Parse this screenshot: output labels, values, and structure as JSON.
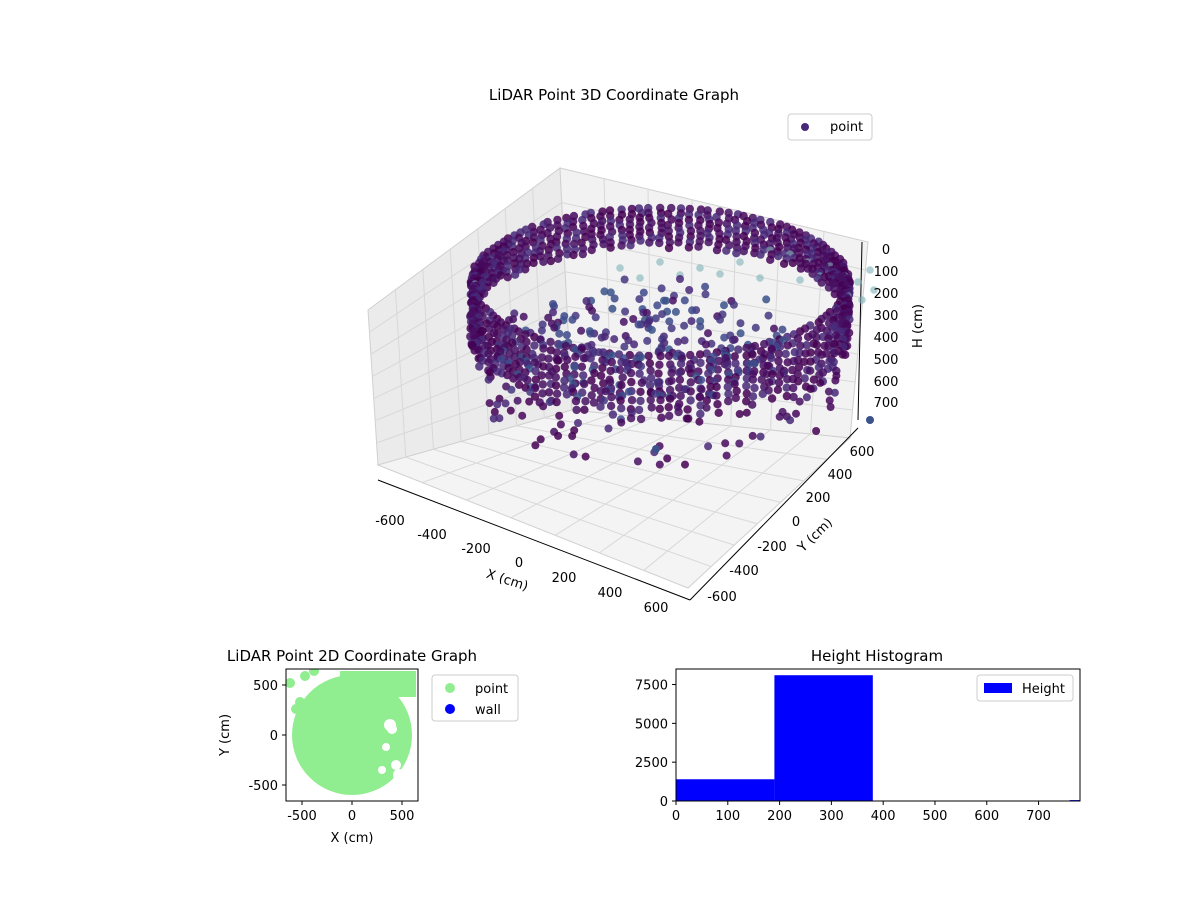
{
  "figure": {
    "background": "#ffffff"
  },
  "chart_data": [
    {
      "type": "scatter3d",
      "title": "LiDAR Point 3D Coordinate Graph",
      "xlabel": "X (cm)",
      "ylabel": "Y (cm)",
      "zlabel": "H (cm)",
      "xlim": [
        -650,
        650
      ],
      "ylim": [
        -650,
        650
      ],
      "zlim": [
        0,
        780
      ],
      "z_inverted": true,
      "x_ticks": [
        "-600",
        "-400",
        "-200",
        "0",
        "200",
        "400",
        "600"
      ],
      "y_ticks": [
        "-600",
        "-400",
        "-200",
        "0",
        "200",
        "400",
        "600"
      ],
      "z_ticks": [
        "0",
        "100",
        "200",
        "300",
        "400",
        "500",
        "600",
        "700"
      ],
      "legend": {
        "position": "top-right",
        "entries": [
          "point"
        ]
      },
      "colormap": "viridis",
      "colors": {
        "dark": "#440154",
        "mid": "#3b528b",
        "light": "#21918c",
        "marker": "#482878"
      },
      "description_series": [
        {
          "name": "point",
          "shape": "ring wall",
          "radius": [
            560,
            600
          ],
          "height": [
            200,
            380
          ]
        },
        {
          "name": "point",
          "shape": "scattered interior",
          "radius": [
            0,
            520
          ],
          "height": [
            0,
            200
          ]
        }
      ]
    },
    {
      "type": "scatter",
      "title": "LiDAR Point 2D Coordinate Graph",
      "xlabel": "X (cm)",
      "ylabel": "Y (cm)",
      "xlim": [
        -660,
        660
      ],
      "ylim": [
        -660,
        660
      ],
      "x_ticks": [
        "-500",
        "0",
        "500"
      ],
      "y_ticks": [
        "-500",
        "0",
        "500"
      ],
      "legend": {
        "position": "outside-right",
        "entries": [
          "point",
          "wall"
        ]
      },
      "colors": {
        "point": "#90ee90",
        "wall": "#0000ff"
      },
      "series": [
        {
          "name": "point",
          "shape": "disk",
          "center": [
            0,
            0
          ],
          "radius": 600
        },
        {
          "name": "wall",
          "points": []
        }
      ]
    },
    {
      "type": "bar",
      "title": "Height Histogram",
      "xlabel": "",
      "ylabel": "",
      "xlim": [
        0,
        780
      ],
      "ylim": [
        0,
        8500
      ],
      "x_ticks": [
        "0",
        "100",
        "200",
        "300",
        "400",
        "500",
        "600",
        "700"
      ],
      "y_ticks": [
        "0",
        "2500",
        "5000",
        "7500"
      ],
      "legend": {
        "position": "top-right",
        "entries": [
          "Height"
        ]
      },
      "colors": {
        "bar": "#0000ff"
      },
      "bins": [
        {
          "x0": 0,
          "x1": 190,
          "count": 1400
        },
        {
          "x0": 190,
          "x1": 380,
          "count": 8100
        },
        {
          "x0": 380,
          "x1": 570,
          "count": 0
        },
        {
          "x0": 570,
          "x1": 760,
          "count": 0
        },
        {
          "x0": 760,
          "x1": 780,
          "count": 60
        }
      ]
    }
  ]
}
